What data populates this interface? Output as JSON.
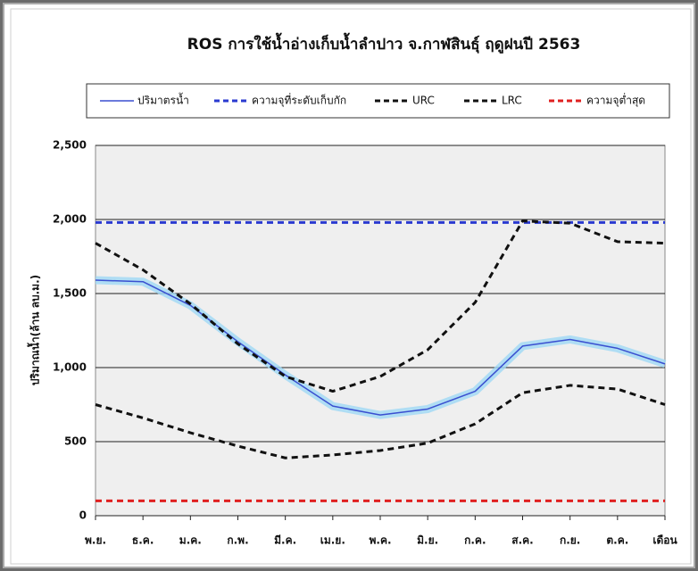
{
  "chart_data": {
    "type": "line",
    "title": "ROS การใช้น้ำอ่างเก็บน้ำลำปาว จ.กาฬสินธุ์ ฤดูฝนปี 2563",
    "y_label": "ปริมาณน้ำ(ล้าน ลบ.ม.)",
    "x_label": "เดือน",
    "categories": [
      "พ.ย.",
      "ธ.ค.",
      "ม.ค.",
      "ก.พ.",
      "มี.ค.",
      "เม.ย.",
      "พ.ค.",
      "มิ.ย.",
      "ก.ค.",
      "ส.ค.",
      "ก.ย.",
      "ต.ค.",
      null
    ],
    "ylim": [
      0,
      2500
    ],
    "yticks": [
      0,
      500,
      {
        "value": 1000,
        "label": "1,000"
      },
      {
        "value": 1500,
        "label": "1,500"
      },
      {
        "value": 2000,
        "label": "2,000"
      },
      {
        "value": 2500,
        "label": "2,500"
      }
    ],
    "grid": true,
    "series": [
      {
        "name": "ปริมาตรน้ำ",
        "color": "#3a4fd0",
        "line_style": "solid",
        "glow": true,
        "values": [
          1590,
          1580,
          1420,
          1175,
          950,
          740,
          680,
          720,
          840,
          1145,
          1190,
          1130,
          1025
        ]
      },
      {
        "name": "ความจุที่ระดับเก็บกัก",
        "color": "#2a3ad0",
        "line_style": "dashed",
        "values": [
          1980,
          1980,
          1980,
          1980,
          1980,
          1980,
          1980,
          1980,
          1980,
          1980,
          1980,
          1980,
          1980
        ]
      },
      {
        "name": "URC",
        "color": "#111111",
        "line_style": "dashed",
        "values": [
          1840,
          1660,
          1430,
          1160,
          940,
          840,
          940,
          1120,
          1440,
          1990,
          1975,
          1850,
          1840
        ]
      },
      {
        "name": "LRC",
        "color": "#111111",
        "line_style": "dashed",
        "values": [
          750,
          660,
          560,
          470,
          390,
          410,
          440,
          490,
          620,
          830,
          880,
          855,
          750
        ]
      },
      {
        "name": "ความจุต่ำสุด",
        "color": "#e02020",
        "line_style": "dashed",
        "values": [
          100,
          100,
          100,
          100,
          100,
          100,
          100,
          100,
          100,
          100,
          100,
          100,
          100
        ]
      }
    ]
  }
}
